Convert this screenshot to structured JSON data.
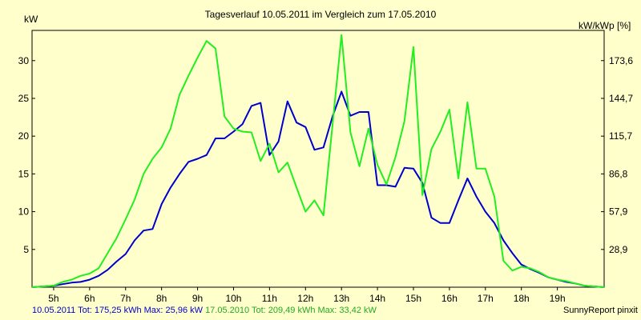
{
  "chart_data": {
    "type": "line",
    "title": "Tagesverlauf 10.05.2011 im Vergleich zum 17.05.2010",
    "ylabel_left": "kW",
    "ylabel_right": "kW/kWp [%]",
    "ylim": [
      0,
      34
    ],
    "yticks": [
      5,
      10,
      15,
      20,
      25,
      30
    ],
    "right_ticks": [
      {
        "at": 5,
        "label": "28,9"
      },
      {
        "at": 10,
        "label": "57,9"
      },
      {
        "at": 15,
        "label": "86,8"
      },
      {
        "at": 20,
        "label": "115,7"
      },
      {
        "at": 25,
        "label": "144,7"
      },
      {
        "at": 30,
        "label": "173,6"
      }
    ],
    "xlim": [
      4.4,
      20.3
    ],
    "xticks": [
      {
        "at": 5,
        "label": "5h"
      },
      {
        "at": 6,
        "label": "6h"
      },
      {
        "at": 7,
        "label": "7h"
      },
      {
        "at": 8,
        "label": "8h"
      },
      {
        "at": 9,
        "label": "9h"
      },
      {
        "at": 10,
        "label": "10h"
      },
      {
        "at": 11,
        "label": "11h"
      },
      {
        "at": 12,
        "label": "12h"
      },
      {
        "at": 13,
        "label": "13h"
      },
      {
        "at": 14,
        "label": "14h"
      },
      {
        "at": 15,
        "label": "15h"
      },
      {
        "at": 16,
        "label": "16h"
      },
      {
        "at": 17,
        "label": "17h"
      },
      {
        "at": 18,
        "label": "18h"
      },
      {
        "at": 19,
        "label": "19h"
      }
    ],
    "grid": false,
    "series": [
      {
        "name": "10.05.2011",
        "color": "#0000cc",
        "x": [
          4.4,
          5.0,
          5.25,
          5.5,
          5.75,
          6.0,
          6.25,
          6.5,
          6.75,
          7.0,
          7.25,
          7.5,
          7.75,
          8.0,
          8.25,
          8.5,
          8.75,
          9.0,
          9.25,
          9.5,
          9.75,
          10.0,
          10.25,
          10.5,
          10.75,
          11.0,
          11.25,
          11.5,
          11.75,
          12.0,
          12.25,
          12.5,
          12.75,
          13.0,
          13.25,
          13.5,
          13.75,
          14.0,
          14.25,
          14.5,
          14.75,
          15.0,
          15.25,
          15.5,
          15.75,
          16.0,
          16.25,
          16.5,
          16.75,
          17.0,
          17.25,
          17.5,
          17.75,
          18.0,
          18.25,
          18.5,
          18.75,
          19.0,
          19.25,
          19.5,
          19.75,
          20.3
        ],
        "y": [
          0,
          0.2,
          0.4,
          0.6,
          0.7,
          1.0,
          1.5,
          2.3,
          3.4,
          4.4,
          6.2,
          7.5,
          7.7,
          11.0,
          13.2,
          15.0,
          16.6,
          17.0,
          17.5,
          19.7,
          19.7,
          20.6,
          21.6,
          24.0,
          24.4,
          17.5,
          19.3,
          24.6,
          21.8,
          21.2,
          18.2,
          18.5,
          22.6,
          25.9,
          22.7,
          23.2,
          23.2,
          13.5,
          13.5,
          13.3,
          15.8,
          15.7,
          13.8,
          9.2,
          8.5,
          8.5,
          11.5,
          14.4,
          12.0,
          10.0,
          8.5,
          6.2,
          4.5,
          3.0,
          2.4,
          1.9,
          1.3,
          1.0,
          0.7,
          0.5,
          0.2,
          0.0
        ]
      },
      {
        "name": "17.05.2010",
        "color": "#22ee22",
        "x": [
          4.4,
          5.0,
          5.25,
          5.5,
          5.75,
          6.0,
          6.25,
          6.5,
          6.75,
          7.0,
          7.25,
          7.5,
          7.75,
          8.0,
          8.25,
          8.5,
          8.75,
          9.0,
          9.25,
          9.5,
          9.75,
          10.0,
          10.25,
          10.5,
          10.75,
          11.0,
          11.25,
          11.5,
          11.75,
          12.0,
          12.25,
          12.5,
          12.75,
          13.0,
          13.25,
          13.5,
          13.75,
          14.0,
          14.25,
          14.5,
          14.75,
          15.0,
          15.25,
          15.5,
          15.75,
          16.0,
          16.25,
          16.5,
          16.75,
          17.0,
          17.25,
          17.5,
          17.75,
          18.0,
          18.25,
          18.5,
          18.75,
          19.0,
          19.25,
          19.5,
          19.75,
          20.3
        ],
        "y": [
          0,
          0.2,
          0.7,
          1.0,
          1.5,
          1.8,
          2.5,
          4.5,
          6.5,
          9.0,
          11.6,
          15.0,
          17.0,
          18.5,
          21.0,
          25.5,
          28.0,
          30.4,
          32.6,
          31.6,
          22.6,
          21.0,
          20.6,
          20.5,
          16.7,
          19.0,
          15.2,
          16.5,
          13.2,
          10.0,
          11.5,
          9.5,
          21.5,
          33.4,
          20.5,
          16.0,
          21.0,
          16.2,
          13.6,
          17.2,
          22.0,
          31.8,
          12.2,
          18.3,
          20.6,
          23.5,
          14.4,
          24.5,
          15.7,
          15.7,
          12.0,
          3.5,
          2.2,
          2.7,
          2.5,
          2.0,
          1.3,
          1.0,
          0.8,
          0.5,
          0.2,
          0.0
        ]
      }
    ]
  },
  "footer": {
    "series1_text": "10.05.2011 Tot: 175,25 kWh Max: 25,96 kW",
    "series2_text": "17.05.2010 Tot: 209,49 kWh Max: 33,42 kW",
    "credit": "SunnyReport pinxit"
  }
}
